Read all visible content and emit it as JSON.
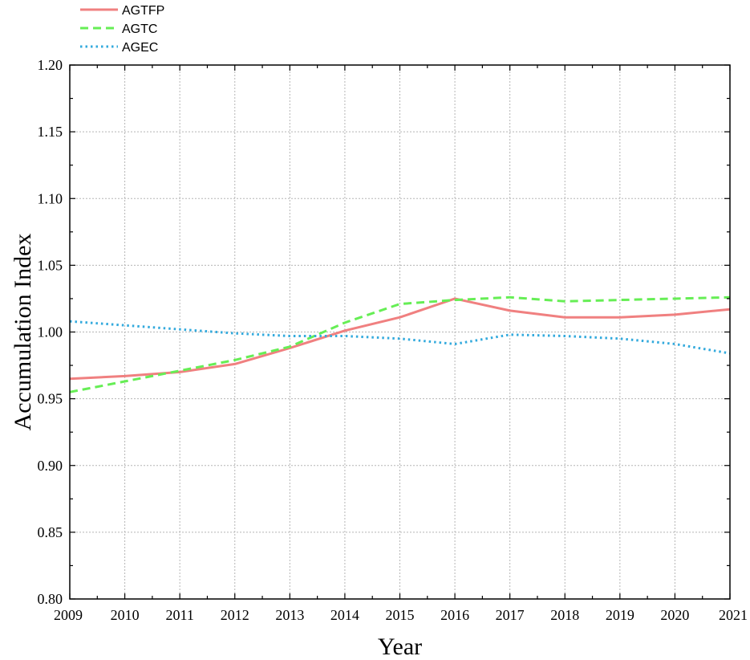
{
  "chart_data": {
    "type": "line",
    "xlabel": "Year",
    "ylabel": "Accumulation Index",
    "ylim": [
      0.8,
      1.2
    ],
    "yticks": [
      "0.80",
      "0.85",
      "0.90",
      "0.95",
      "1.00",
      "1.05",
      "1.10",
      "1.15",
      "1.20"
    ],
    "x": [
      2009,
      2010,
      2011,
      2012,
      2013,
      2014,
      2015,
      2016,
      2017,
      2018,
      2019,
      2020,
      2021
    ],
    "xticks": [
      "2009",
      "2010",
      "2011",
      "2012",
      "2013",
      "2014",
      "2015",
      "2016",
      "2017",
      "2018",
      "2019",
      "2020",
      "2021"
    ],
    "grid": true,
    "legend_position": "top-left, above plot",
    "series": [
      {
        "name": "AGTFP",
        "style": "solid",
        "color": "#f08080",
        "values": [
          0.965,
          0.967,
          0.97,
          0.976,
          0.988,
          1.001,
          1.011,
          1.025,
          1.016,
          1.011,
          1.011,
          1.013,
          1.017
        ]
      },
      {
        "name": "AGTC",
        "style": "dashed",
        "color": "#66ee55",
        "values": [
          0.955,
          0.963,
          0.971,
          0.979,
          0.989,
          1.007,
          1.021,
          1.024,
          1.026,
          1.023,
          1.024,
          1.025,
          1.026
        ]
      },
      {
        "name": "AGEC",
        "style": "dotted",
        "color": "#33aadd",
        "values": [
          1.008,
          1.005,
          1.002,
          0.999,
          0.997,
          0.997,
          0.995,
          0.991,
          0.998,
          0.997,
          0.995,
          0.991,
          0.984
        ]
      }
    ]
  }
}
